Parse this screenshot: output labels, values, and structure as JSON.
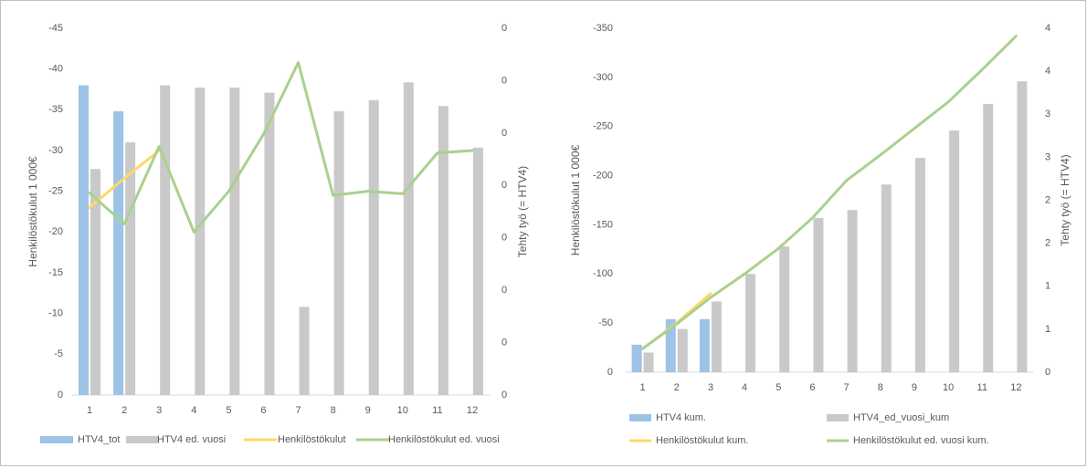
{
  "chart_data": [
    {
      "type": "bar",
      "categories": [
        "1",
        "2",
        "3",
        "4",
        "5",
        "6",
        "7",
        "8",
        "9",
        "10",
        "11",
        "12"
      ],
      "ylabel": "Henkilöstökulut 1 000€",
      "y2label": "Tehty työ (= HTV4)",
      "ylim": [
        0,
        -45
      ],
      "yticks": [
        "-45",
        "-40",
        "-35",
        "-30",
        "-25",
        "-20",
        "-15",
        "-10",
        "-5",
        "0"
      ],
      "y2ticks": [
        "0",
        "0",
        "0",
        "0",
        "0",
        "0",
        "0",
        "0"
      ],
      "grid": false,
      "legend_position": "bottom",
      "series": [
        {
          "name": "HTV4_tot",
          "kind": "bar",
          "axis": "right",
          "color": "#9dc3e6",
          "values": [
            41.8,
            38.3,
            null,
            null,
            null,
            null,
            null,
            null,
            null,
            null,
            null,
            null
          ]
        },
        {
          "name": "HTV4 ed. vuosi",
          "kind": "bar",
          "axis": "right",
          "color": "#c9c9c9",
          "values": [
            30.5,
            34.1,
            41.8,
            41.5,
            41.5,
            40.8,
            11.9,
            38.3,
            39.8,
            42.2,
            39.0,
            33.4
          ]
        },
        {
          "name": "Henkilöstökulut",
          "kind": "line",
          "axis": "left",
          "color": "#ffd966",
          "values": [
            -23.0,
            -26.6,
            -30.0,
            null,
            null,
            null,
            null,
            null,
            null,
            null,
            null,
            null
          ]
        },
        {
          "name": "Henkilöstökulut ed. vuosi",
          "kind": "line",
          "axis": "left",
          "color": "#a9d18e",
          "values": [
            -24.8,
            -21.0,
            -30.5,
            -20.0,
            -25.0,
            -32.0,
            -40.8,
            -24.5,
            -25.0,
            -24.7,
            -29.7,
            -30.0
          ]
        }
      ]
    },
    {
      "type": "bar",
      "categories": [
        "1",
        "2",
        "3",
        "4",
        "5",
        "6",
        "7",
        "8",
        "9",
        "10",
        "11",
        "12"
      ],
      "ylabel": "Henkilöstökulut 1 000€",
      "y2label": "Tehty työ (= HTV4)",
      "ylim": [
        0,
        -350
      ],
      "yticks": [
        "-350",
        "-300",
        "-250",
        "-200",
        "-150",
        "-100",
        "-50",
        "0"
      ],
      "y2ticks": [
        "4",
        "4",
        "3",
        "3",
        "2",
        "2",
        "1",
        "1",
        "0"
      ],
      "grid": false,
      "legend_position": "bottom",
      "series": [
        {
          "name": "HTV4 kum.",
          "kind": "bar",
          "axis": "right",
          "color": "#9dc3e6",
          "values": [
            28,
            54,
            54,
            null,
            null,
            null,
            null,
            null,
            null,
            null,
            null,
            null
          ]
        },
        {
          "name": "HTV4_ed_vuosi_kum",
          "kind": "bar",
          "axis": "right",
          "color": "#c9c9c9",
          "values": [
            20,
            44,
            72,
            100,
            128,
            157,
            165,
            191,
            218,
            246,
            273,
            296
          ]
        },
        {
          "name": "Henkilöstökulut kum.",
          "kind": "line",
          "axis": "left",
          "color": "#ffd966",
          "values": [
            -24,
            -50,
            -80,
            null,
            null,
            null,
            null,
            null,
            null,
            null,
            null,
            null
          ]
        },
        {
          "name": "Henkilöstökulut ed. vuosi kum.",
          "kind": "line",
          "axis": "left",
          "color": "#a9d18e",
          "values": [
            -24,
            -49,
            -76,
            -100,
            -126,
            -157,
            -195,
            -221,
            -248,
            -275,
            -308,
            -342
          ]
        }
      ]
    }
  ]
}
